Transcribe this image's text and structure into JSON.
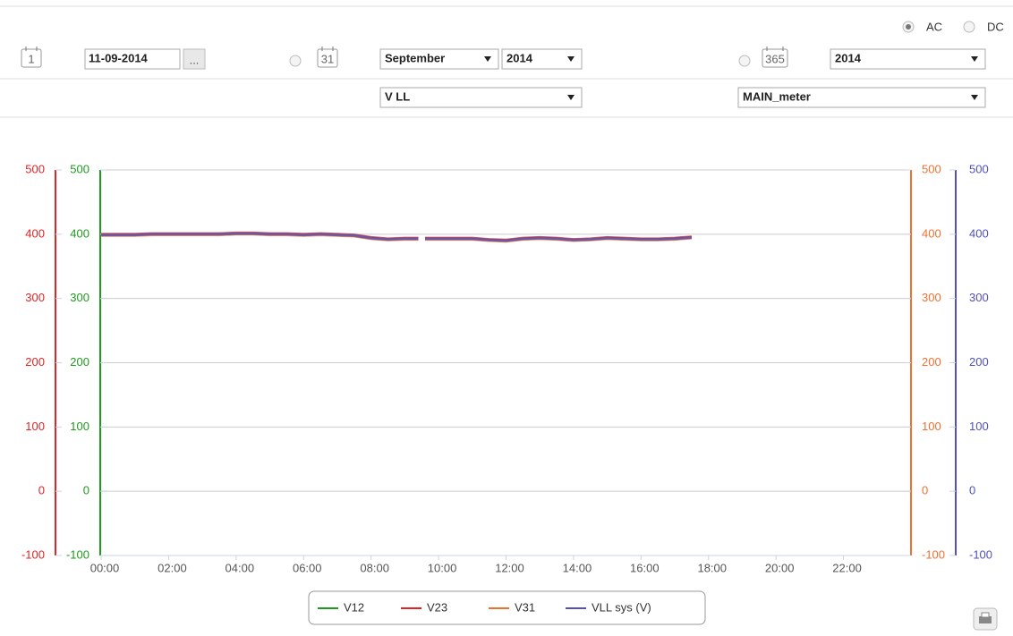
{
  "controls": {
    "mode": {
      "options": [
        "AC",
        "DC"
      ],
      "selected": 0
    },
    "day_icon": "1",
    "date": "11-09-2014",
    "date_button": "...",
    "month_icon": "31",
    "month": "September",
    "month_year": "2014",
    "year_icon": "365",
    "year": "2014",
    "quantity": "V LL",
    "meter": "MAIN_meter"
  },
  "chart_data": {
    "type": "line",
    "x": [
      0,
      0.5,
      1,
      1.5,
      2,
      2.5,
      3,
      3.5,
      4,
      4.5,
      5,
      5.5,
      6,
      6.5,
      7,
      7.5,
      8,
      8.5,
      9,
      9.4,
      9.5,
      9.6,
      10,
      10.5,
      11,
      11.5,
      12,
      12.5,
      13,
      13.5,
      14,
      14.5,
      15,
      15.5,
      16,
      16.5,
      17,
      17.5
    ],
    "series": [
      {
        "name": "V12",
        "color": "#1e9a1e",
        "values": [
          399,
          399,
          399,
          400,
          400,
          400,
          400,
          400,
          401,
          401,
          400,
          400,
          399,
          400,
          399,
          398,
          394,
          392,
          393,
          393,
          null,
          393,
          393,
          393,
          393,
          391,
          390,
          393,
          394,
          393,
          391,
          392,
          394,
          393,
          392,
          392,
          393,
          395
        ]
      },
      {
        "name": "V23",
        "color": "#e02424",
        "values": [
          400,
          400,
          400,
          401,
          401,
          401,
          401,
          401,
          402,
          402,
          401,
          401,
          400,
          401,
          400,
          399,
          395,
          393,
          394,
          394,
          null,
          394,
          394,
          394,
          394,
          392,
          391,
          394,
          395,
          394,
          392,
          393,
          395,
          394,
          393,
          393,
          394,
          396
        ]
      },
      {
        "name": "V31",
        "color": "#f07030",
        "values": [
          398,
          398,
          398,
          399,
          399,
          399,
          399,
          399,
          400,
          400,
          399,
          399,
          398,
          399,
          398,
          397,
          393,
          391,
          392,
          392,
          null,
          392,
          392,
          392,
          392,
          390,
          389,
          392,
          393,
          392,
          390,
          391,
          393,
          392,
          391,
          391,
          392,
          394
        ]
      },
      {
        "name": "VLL sys (V)",
        "color": "#5050c0",
        "values": [
          399,
          399,
          399,
          400,
          400,
          400,
          400,
          400,
          401,
          401,
          400,
          400,
          399,
          400,
          399,
          398,
          394,
          392,
          393,
          393,
          null,
          393,
          393,
          393,
          393,
          391,
          390,
          393,
          394,
          393,
          391,
          392,
          394,
          393,
          392,
          392,
          393,
          395
        ]
      }
    ],
    "xlim": [
      0,
      24
    ],
    "xticks": [
      {
        "value": 0,
        "label": "00:00"
      },
      {
        "value": 2,
        "label": "02:00"
      },
      {
        "value": 4,
        "label": "04:00"
      },
      {
        "value": 6,
        "label": "06:00"
      },
      {
        "value": 8,
        "label": "08:00"
      },
      {
        "value": 10,
        "label": "10:00"
      },
      {
        "value": 12,
        "label": "12:00"
      },
      {
        "value": 14,
        "label": "14:00"
      },
      {
        "value": 16,
        "label": "16:00"
      },
      {
        "value": 18,
        "label": "18:00"
      },
      {
        "value": 20,
        "label": "20:00"
      },
      {
        "value": 22,
        "label": "22:00"
      }
    ],
    "ylim": [
      -100,
      500
    ],
    "yticks": [
      -100,
      0,
      100,
      200,
      300,
      400,
      500
    ],
    "axis_colors": [
      "#e02424",
      "#1e9a1e",
      "#f07030",
      "#5050c0"
    ],
    "grid": true
  }
}
